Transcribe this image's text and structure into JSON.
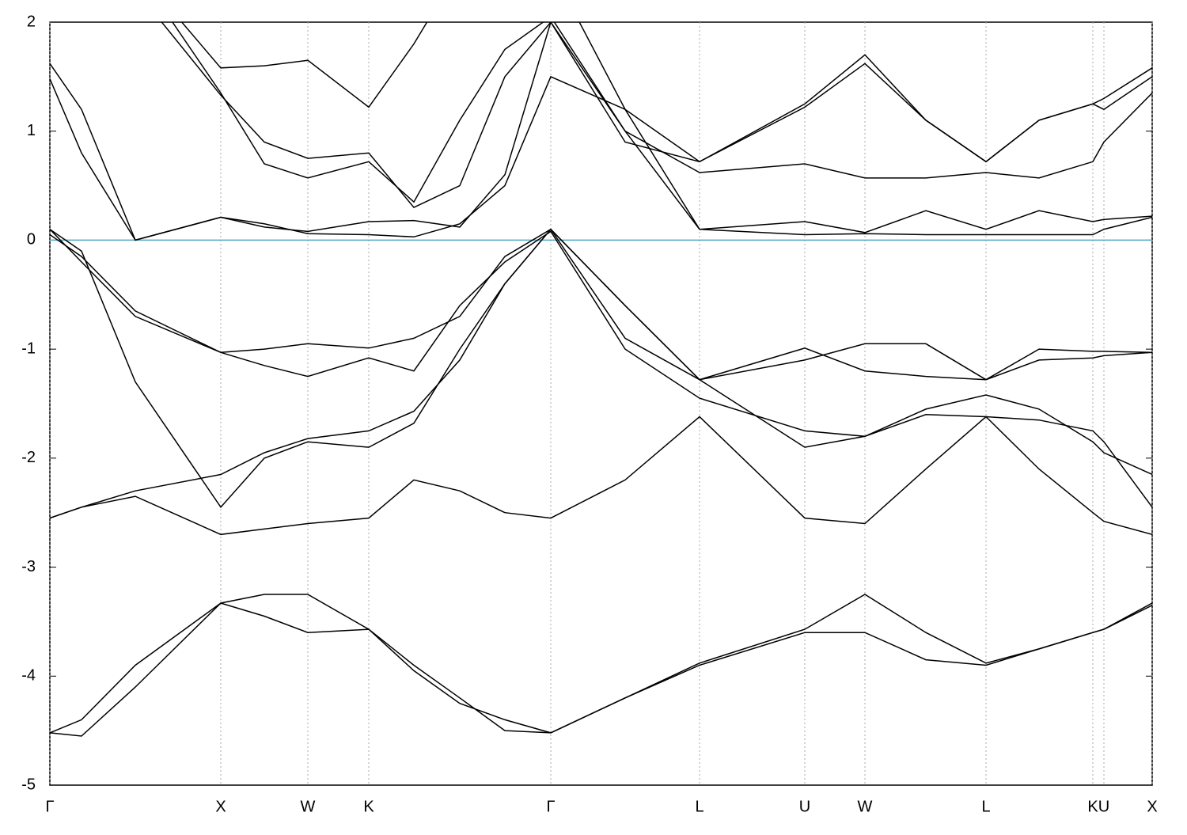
{
  "chart_data": {
    "type": "line",
    "xlim": [
      0,
      1393
    ],
    "ylim": [
      -5,
      2
    ],
    "xticks": [
      {
        "value": 0,
        "label": "Γ"
      },
      {
        "value": 216,
        "label": "X"
      },
      {
        "value": 326,
        "label": "W"
      },
      {
        "value": 403,
        "label": "K"
      },
      {
        "value": 633,
        "label": "Γ"
      },
      {
        "value": 821,
        "label": "L"
      },
      {
        "value": 954,
        "label": "U"
      },
      {
        "value": 1030,
        "label": "W"
      },
      {
        "value": 1183,
        "label": "L"
      },
      {
        "value": 1318,
        "label": "K"
      },
      {
        "value": 1332,
        "label": "U"
      },
      {
        "value": 1393,
        "label": "X"
      }
    ],
    "yticks": [
      -5,
      -4,
      -3,
      -2,
      -1,
      0,
      1,
      2
    ],
    "grid": true,
    "fermi_level": 0,
    "fermi_color": "#4fa8c4",
    "x": [
      0,
      40,
      108,
      216,
      271,
      326,
      403,
      460,
      518,
      575,
      633,
      727,
      821,
      954,
      1030,
      1107,
      1183,
      1250,
      1318,
      1332,
      1393
    ],
    "series": [
      {
        "color": "#000000",
        "values": [
          -4.52,
          -4.4,
          -3.9,
          -3.33,
          -3.45,
          -3.6,
          -3.57,
          -3.95,
          -4.25,
          -4.4,
          -4.52,
          -4.2,
          -3.88,
          -3.57,
          -3.25,
          -3.6,
          -3.88,
          -3.75,
          -3.6,
          -3.57,
          -3.33
        ]
      },
      {
        "color": "#000000",
        "values": [
          -4.52,
          -4.55,
          -4.1,
          -3.33,
          -3.25,
          -3.25,
          -3.57,
          -3.9,
          -4.2,
          -4.5,
          -4.52,
          -4.2,
          -3.9,
          -3.6,
          -3.6,
          -3.85,
          -3.9,
          -3.75,
          -3.6,
          -3.57,
          -3.35
        ]
      },
      {
        "color": "#000000",
        "values": [
          -2.55,
          -2.45,
          -2.3,
          -2.15,
          -1.95,
          -1.82,
          -1.75,
          -1.57,
          -1.1,
          -0.4,
          0.1,
          -0.6,
          -1.28,
          -1.1,
          -0.95,
          -0.95,
          -1.28,
          -1.0,
          -1.02,
          -1.02,
          -1.03
        ]
      },
      {
        "color": "#000000",
        "values": [
          0.1,
          -0.2,
          -0.7,
          -1.03,
          -1.0,
          -0.95,
          -0.99,
          -0.9,
          -0.7,
          -0.15,
          0.1,
          -0.6,
          -1.28,
          -0.99,
          -1.2,
          -1.25,
          -1.28,
          -1.1,
          -1.08,
          -1.06,
          -1.03
        ]
      },
      {
        "color": "#000000",
        "values": [
          0.1,
          -0.1,
          -1.3,
          -2.45,
          -2.0,
          -1.85,
          -1.9,
          -1.68,
          -1.0,
          -0.4,
          0.1,
          -0.9,
          -1.28,
          -1.9,
          -1.8,
          -1.6,
          -1.62,
          -1.65,
          -1.75,
          -1.85,
          -2.45
        ]
      },
      {
        "color": "#000000",
        "values": [
          -2.55,
          -2.45,
          -2.35,
          -2.7,
          -2.65,
          -2.6,
          -2.55,
          -2.2,
          -2.3,
          -2.5,
          -2.55,
          -2.2,
          -1.62,
          -2.55,
          -2.6,
          -2.1,
          -1.62,
          -2.1,
          -2.5,
          -2.58,
          -2.7
        ]
      },
      {
        "color": "#000000",
        "values": [
          0.05,
          -0.15,
          -0.65,
          -1.03,
          -1.15,
          -1.25,
          -1.08,
          -1.2,
          -0.6,
          -0.2,
          0.08,
          -1.0,
          -1.45,
          -1.75,
          -1.8,
          -1.55,
          -1.42,
          -1.55,
          -1.85,
          -1.95,
          -2.15
        ]
      },
      {
        "color": "#000000",
        "values": [
          1.48,
          0.8,
          0.0,
          0.21,
          0.15,
          0.06,
          0.05,
          0.03,
          0.15,
          0.5,
          1.5,
          1.2,
          0.1,
          0.05,
          0.06,
          0.05,
          0.05,
          0.05,
          0.05,
          0.1,
          0.21
        ]
      },
      {
        "color": "#000000",
        "values": [
          1.62,
          1.2,
          0.0,
          0.21,
          0.12,
          0.08,
          0.17,
          0.18,
          0.12,
          0.6,
          2.0,
          1.0,
          0.1,
          0.17,
          0.07,
          0.27,
          0.1,
          0.27,
          0.17,
          0.19,
          0.22
        ]
      },
      {
        "color": "#000000",
        "values": [
          2.3,
          2.5,
          2.3,
          1.33,
          0.9,
          0.75,
          0.8,
          0.3,
          0.5,
          1.5,
          2.0,
          0.9,
          0.72,
          1.25,
          1.7,
          1.1,
          0.72,
          1.1,
          1.25,
          1.2,
          1.5
        ]
      },
      {
        "color": "#000000",
        "values": [
          2.5,
          2.6,
          2.5,
          1.35,
          0.7,
          0.57,
          0.72,
          0.35,
          1.1,
          1.75,
          2.05,
          1.0,
          0.62,
          0.7,
          0.57,
          0.57,
          0.62,
          0.57,
          0.72,
          0.9,
          1.35
        ]
      },
      {
        "color": "#000000",
        "values": [
          2.5,
          2.7,
          2.5,
          1.58,
          1.6,
          1.65,
          1.22,
          1.8,
          2.5,
          2.6,
          2.5,
          1.2,
          0.72,
          1.22,
          1.62,
          1.1,
          0.72,
          1.1,
          1.25,
          1.3,
          1.58
        ]
      }
    ]
  }
}
